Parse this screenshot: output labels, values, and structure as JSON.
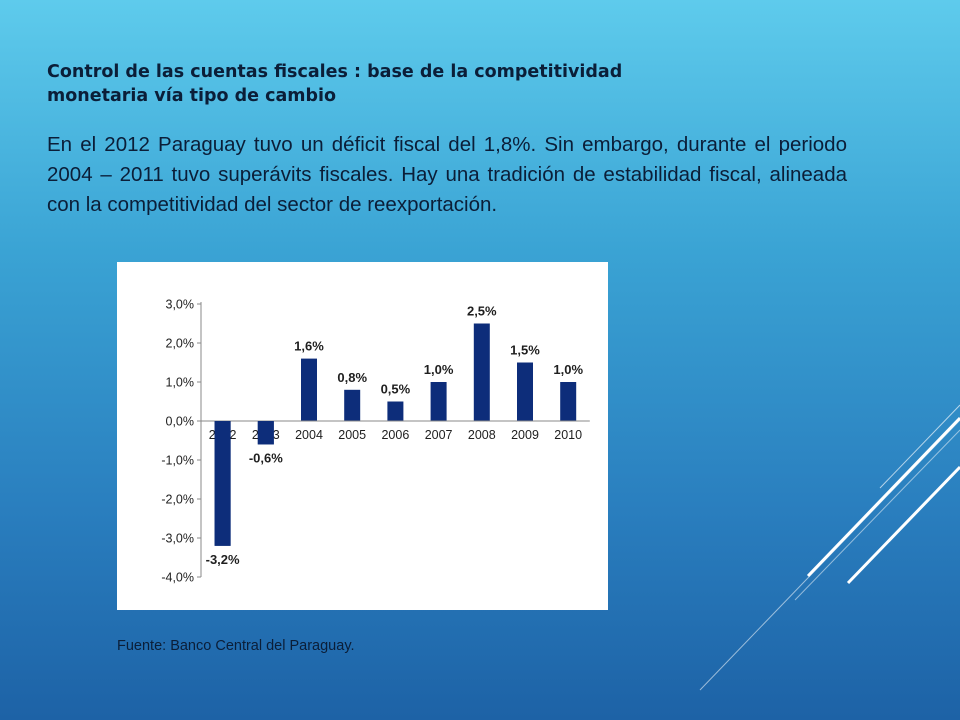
{
  "slide": {
    "title_line1": "Control de las cuentas fiscales : base de la competitividad",
    "title_line2": "monetaria vía tipo de cambio",
    "body": "En el 2012 Paraguay tuvo un déficit fiscal del 1,8%. Sin embargo, durante el periodo 2004 – 2011 tuvo superávits fiscales. Hay una tradición de estabilidad fiscal, alineada con la competitividad del sector de reexportación.",
    "source": "Fuente: Banco Central del Paraguay."
  },
  "chart_data": {
    "type": "bar",
    "categories": [
      "2002",
      "2003",
      "2004",
      "2005",
      "2006",
      "2007",
      "2008",
      "2009",
      "2010"
    ],
    "values": [
      -3.2,
      -0.6,
      1.6,
      0.8,
      0.5,
      1.0,
      2.5,
      1.5,
      1.0
    ],
    "data_labels": [
      "-3,2%",
      "-0,6%",
      "1,6%",
      "0,8%",
      "0,5%",
      "1,0%",
      "2,5%",
      "1,5%",
      "1,0%"
    ],
    "y_ticks": [
      3.0,
      2.0,
      1.0,
      0.0,
      -1.0,
      -2.0,
      -3.0,
      -4.0
    ],
    "y_tick_labels": [
      "3,0%",
      "2,0%",
      "1,0%",
      "0,0%",
      "-1,0%",
      "-2,0%",
      "-3,0%",
      "-4,0%"
    ],
    "ylim": [
      -4.0,
      3.0
    ],
    "bar_color": "#0d2d7a",
    "grid": false,
    "title": "",
    "xlabel": "",
    "ylabel": ""
  },
  "colors": {
    "text": "#0b1e38",
    "decor_lines": "#ffffff"
  }
}
